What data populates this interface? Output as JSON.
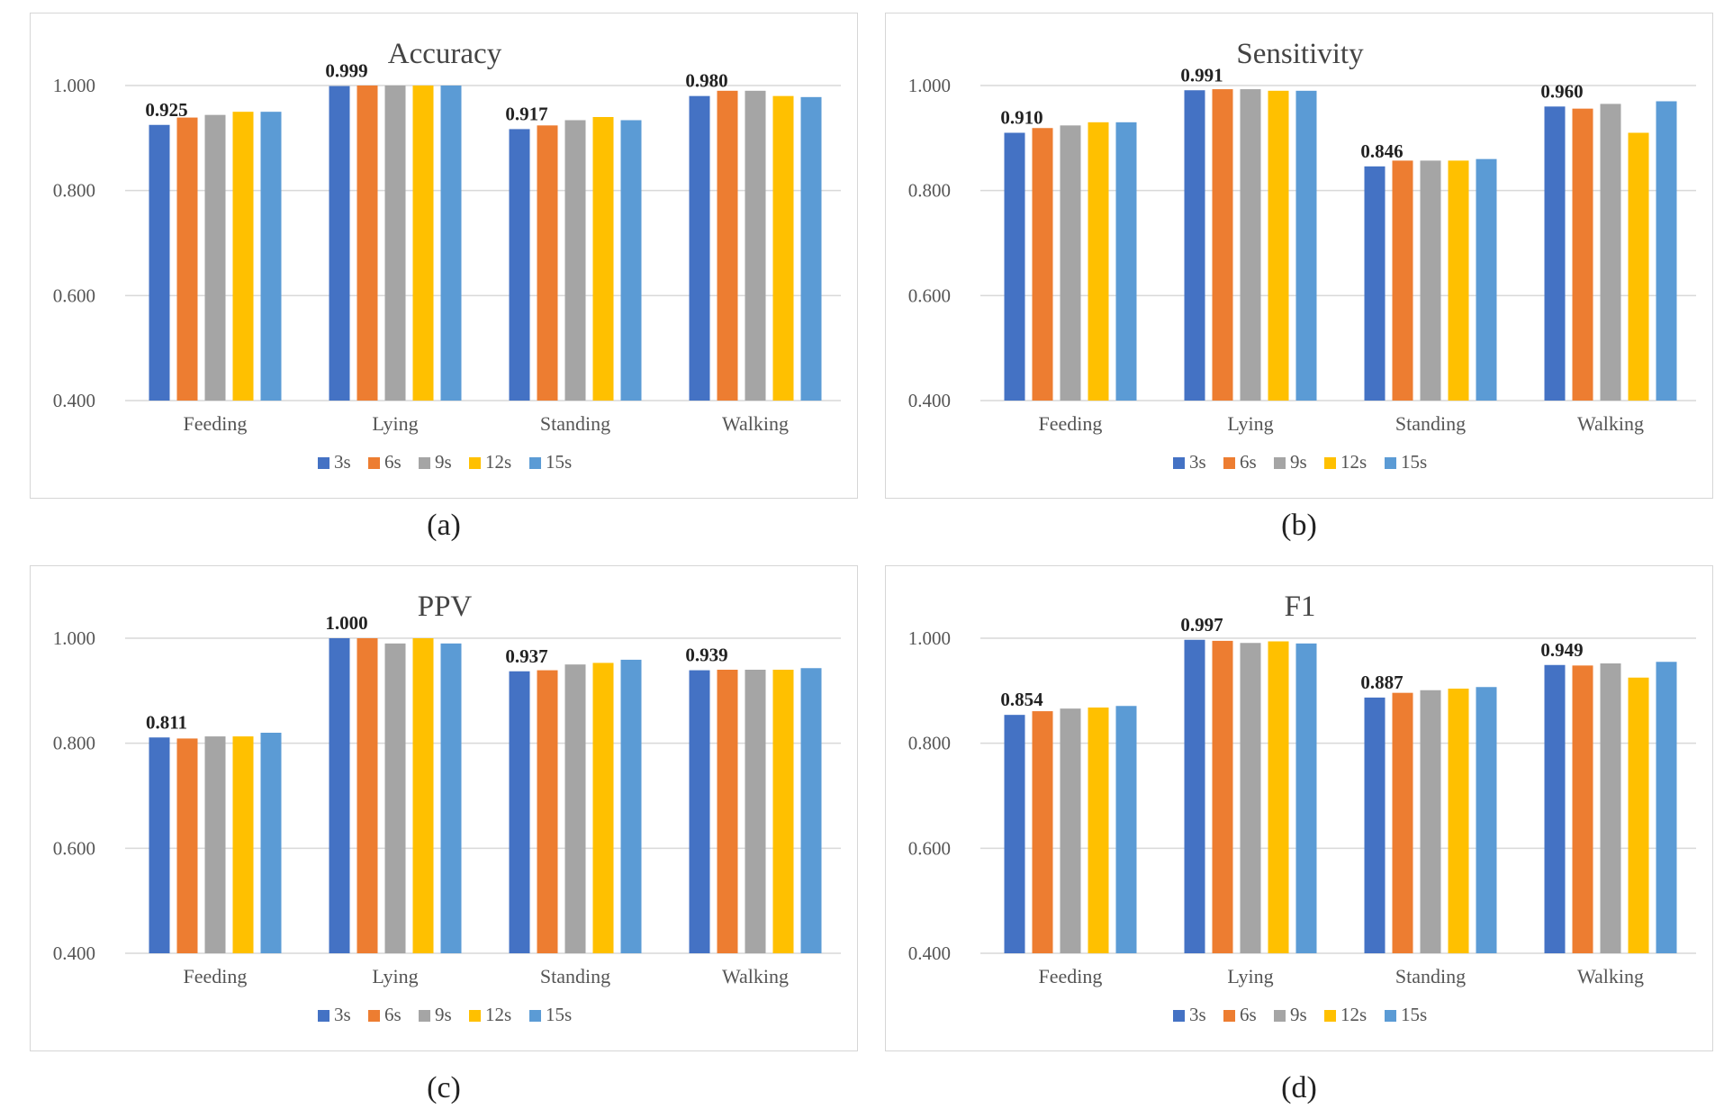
{
  "colors": {
    "3s": "#4472c4",
    "6s": "#ed7d31",
    "9s": "#a5a5a5",
    "12s": "#ffc000",
    "15s": "#5b9bd5"
  },
  "chart_data": [
    {
      "type": "bar",
      "caption": "(a)",
      "title": "Accuracy",
      "categories": [
        "Feeding",
        "Lying",
        "Standing",
        "Walking"
      ],
      "ylim": [
        0.4,
        1.1
      ],
      "yticks": [
        "0.400",
        "0.600",
        "0.800",
        "1.000"
      ],
      "grid": true,
      "legend_position": "bottom",
      "series": [
        {
          "name": "3s",
          "values": [
            0.925,
            0.999,
            0.917,
            0.98
          ]
        },
        {
          "name": "6s",
          "values": [
            0.939,
            1.0,
            0.924,
            0.99
          ]
        },
        {
          "name": "9s",
          "values": [
            0.944,
            1.0,
            0.934,
            0.99
          ]
        },
        {
          "name": "12s",
          "values": [
            0.95,
            1.0,
            0.94,
            0.98
          ]
        },
        {
          "name": "15s",
          "values": [
            0.95,
            1.0,
            0.934,
            0.978
          ]
        }
      ],
      "data_labels": [
        "0.925",
        "0.999",
        "0.917",
        "0.980"
      ]
    },
    {
      "type": "bar",
      "caption": "(b)",
      "title": "Sensitivity",
      "categories": [
        "Feeding",
        "Lying",
        "Standing",
        "Walking"
      ],
      "ylim": [
        0.4,
        1.1
      ],
      "yticks": [
        "0.400",
        "0.600",
        "0.800",
        "1.000"
      ],
      "grid": true,
      "legend_position": "bottom",
      "series": [
        {
          "name": "3s",
          "values": [
            0.91,
            0.991,
            0.846,
            0.96
          ]
        },
        {
          "name": "6s",
          "values": [
            0.919,
            0.993,
            0.857,
            0.956
          ]
        },
        {
          "name": "9s",
          "values": [
            0.924,
            0.993,
            0.857,
            0.965
          ]
        },
        {
          "name": "12s",
          "values": [
            0.93,
            0.99,
            0.857,
            0.91
          ]
        },
        {
          "name": "15s",
          "values": [
            0.93,
            0.99,
            0.86,
            0.97
          ]
        }
      ],
      "data_labels": [
        "0.910",
        "0.991",
        "0.846",
        "0.960"
      ]
    },
    {
      "type": "bar",
      "caption": "(c)",
      "title": "PPV",
      "categories": [
        "Feeding",
        "Lying",
        "Standing",
        "Walking"
      ],
      "ylim": [
        0.4,
        1.1
      ],
      "yticks": [
        "0.400",
        "0.600",
        "0.800",
        "1.000"
      ],
      "grid": true,
      "legend_position": "bottom",
      "series": [
        {
          "name": "3s",
          "values": [
            0.811,
            1.0,
            0.937,
            0.939
          ]
        },
        {
          "name": "6s",
          "values": [
            0.809,
            1.0,
            0.939,
            0.94
          ]
        },
        {
          "name": "9s",
          "values": [
            0.813,
            0.99,
            0.95,
            0.94
          ]
        },
        {
          "name": "12s",
          "values": [
            0.813,
            1.0,
            0.953,
            0.94
          ]
        },
        {
          "name": "15s",
          "values": [
            0.82,
            0.99,
            0.959,
            0.943
          ]
        }
      ],
      "data_labels": [
        "0.811",
        "1.000",
        "0.937",
        "0.939"
      ]
    },
    {
      "type": "bar",
      "caption": "(d)",
      "title": "F1",
      "categories": [
        "Feeding",
        "Lying",
        "Standing",
        "Walking"
      ],
      "ylim": [
        0.4,
        1.1
      ],
      "yticks": [
        "0.400",
        "0.600",
        "0.800",
        "1.000"
      ],
      "grid": true,
      "legend_position": "bottom",
      "series": [
        {
          "name": "3s",
          "values": [
            0.854,
            0.997,
            0.887,
            0.949
          ]
        },
        {
          "name": "6s",
          "values": [
            0.861,
            0.995,
            0.896,
            0.948
          ]
        },
        {
          "name": "9s",
          "values": [
            0.866,
            0.991,
            0.901,
            0.952
          ]
        },
        {
          "name": "12s",
          "values": [
            0.868,
            0.994,
            0.904,
            0.925
          ]
        },
        {
          "name": "15s",
          "values": [
            0.871,
            0.99,
            0.907,
            0.955
          ]
        }
      ],
      "data_labels": [
        "0.854",
        "0.997",
        "0.887",
        "0.949"
      ]
    }
  ]
}
